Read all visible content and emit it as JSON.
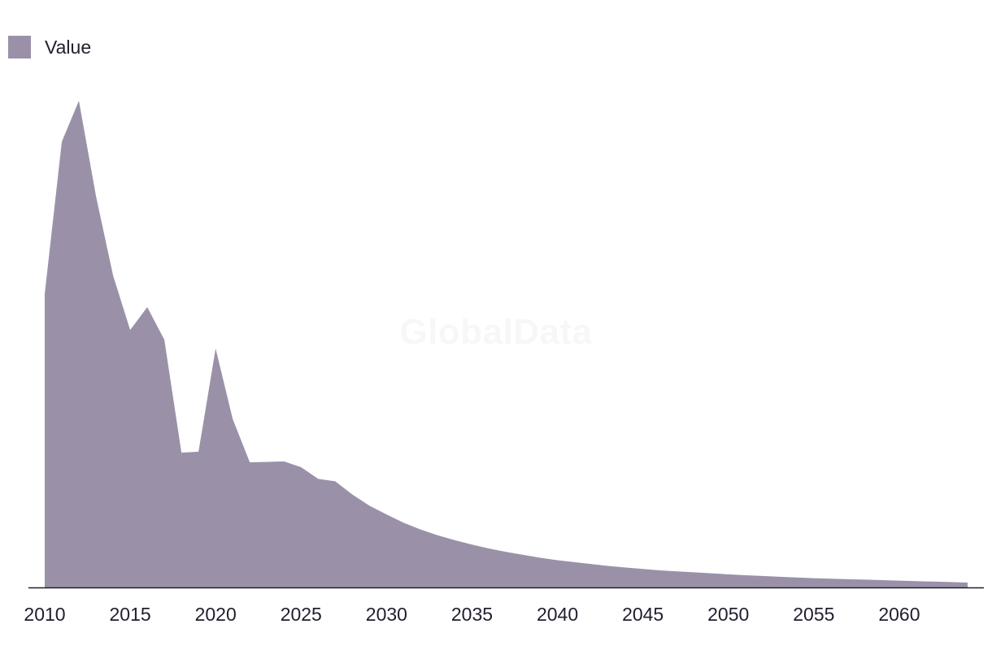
{
  "legend": {
    "label": "Value",
    "color": "#9a91a9"
  },
  "watermark": "GlobalData",
  "colors": {
    "area": "#9a91a9",
    "axis": "#1f1f2e",
    "text": "#1f1f2e"
  },
  "chart_data": {
    "type": "area",
    "title": "",
    "xlabel": "",
    "ylabel": "",
    "x_ticks": [
      "2010",
      "2015",
      "2020",
      "2025",
      "2030",
      "2035",
      "2040",
      "2045",
      "2050",
      "2055",
      "2060"
    ],
    "xlim": [
      2010,
      2064
    ],
    "ylim": [
      0,
      100
    ],
    "grid": false,
    "legend_position": "top-left",
    "series": [
      {
        "name": "Value",
        "x": [
          2010,
          2011,
          2012,
          2013,
          2014,
          2015,
          2016,
          2017,
          2018,
          2019,
          2020,
          2021,
          2022,
          2023,
          2024,
          2025,
          2026,
          2027,
          2028,
          2029,
          2030,
          2031,
          2032,
          2033,
          2034,
          2035,
          2036,
          2037,
          2038,
          2039,
          2040,
          2041,
          2042,
          2043,
          2044,
          2045,
          2046,
          2047,
          2048,
          2049,
          2050,
          2051,
          2052,
          2053,
          2054,
          2055,
          2056,
          2057,
          2058,
          2059,
          2060,
          2061,
          2062,
          2063,
          2064
        ],
        "values": [
          60.3,
          91.6,
          100.0,
          80.4,
          64.1,
          52.9,
          57.6,
          50.9,
          27.7,
          27.9,
          49.1,
          34.6,
          25.7,
          25.8,
          25.9,
          24.7,
          22.3,
          21.8,
          19.1,
          16.8,
          15.0,
          13.3,
          11.9,
          10.7,
          9.7,
          8.8,
          8.0,
          7.3,
          6.7,
          6.1,
          5.6,
          5.2,
          4.8,
          4.4,
          4.1,
          3.8,
          3.5,
          3.3,
          3.1,
          2.9,
          2.7,
          2.5,
          2.35,
          2.2,
          2.05,
          1.9,
          1.8,
          1.7,
          1.6,
          1.5,
          1.4,
          1.3,
          1.2,
          1.1,
          1.0
        ]
      }
    ]
  }
}
